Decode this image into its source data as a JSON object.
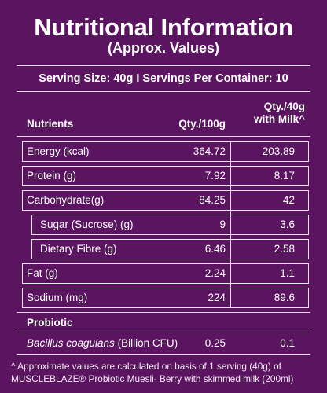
{
  "title": "Nutritional Information",
  "subtitle": "(Approx. Values)",
  "serving": "Serving Size: 40g  I  Servings Per Container: 10",
  "headers": {
    "nutrients": "Nutrients",
    "per100": "Qty./100g",
    "milk_line1": "Qty./40g",
    "milk_line2": "with Milk^"
  },
  "rows": [
    {
      "label": "Energy (kcal)",
      "per100": "364.72",
      "milk": "203.89"
    },
    {
      "label": "Protein (g)",
      "per100": "7.92",
      "milk": "8.17"
    },
    {
      "label": "Carbohydrate(g)",
      "per100": "84.25",
      "milk": "42"
    },
    {
      "label": "Sugar (Sucrose) (g)",
      "per100": "9",
      "milk": "3.6"
    },
    {
      "label": "Dietary Fibre (g)",
      "per100": "6.46",
      "milk": "2.58"
    },
    {
      "label": "Fat (g)",
      "per100": "2.24",
      "milk": "1.1"
    },
    {
      "label": "Sodium (mg)",
      "per100": "224",
      "milk": "89.6"
    }
  ],
  "probiotic_heading": "Probiotic",
  "probiotic_row": {
    "label_italic": "Bacillus coagulans",
    "label_rest": " (Billion CFU)",
    "per100": "0.25",
    "milk": "0.1"
  },
  "footnote": "^ Approximate values are calculated on basis of 1 serving (40g) of MUSCLEBLAZE® Probiotic Muesli- Berry with skimmed milk (200ml)"
}
